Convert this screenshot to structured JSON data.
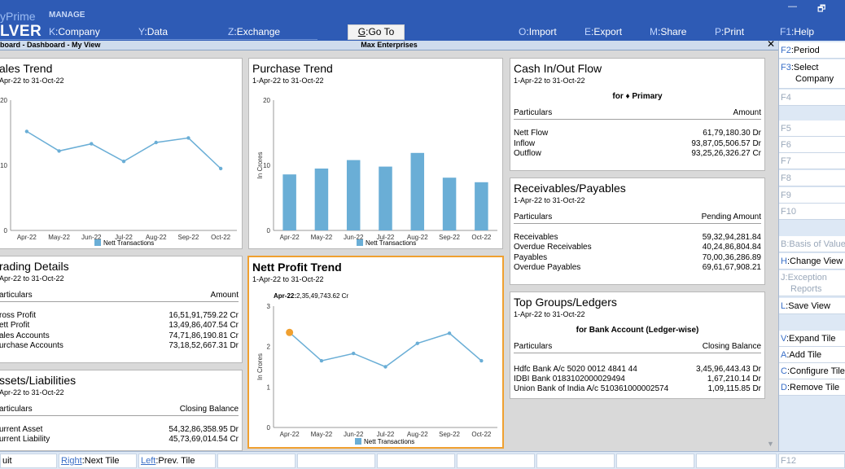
{
  "header": {
    "brand_top": "yPrime",
    "brand_main": "LVER",
    "manage_label": "MANAGE",
    "menu": [
      {
        "key": "K",
        "label": "Company"
      },
      {
        "key": "Y",
        "label": "Data"
      },
      {
        "key": "Z",
        "label": "Exchange"
      },
      {
        "key": "G",
        "label": "Go To"
      },
      {
        "key": "O",
        "label": "Import"
      },
      {
        "key": "E",
        "label": "Export"
      },
      {
        "key": "M",
        "label": "Share"
      },
      {
        "key": "P",
        "label": "Print"
      },
      {
        "key": "F1",
        "label": "Help"
      }
    ],
    "minimize": "—",
    "restore": "🗗"
  },
  "infobar": {
    "breadcrumb": "board - Dashboard - My View",
    "company": "Max Enterprises",
    "close": "✕"
  },
  "colors": {
    "accent": "#2e5bb5",
    "bar": "#6aaed6",
    "line": "#6aaed6",
    "highlight": "#f0a030"
  },
  "tiles": {
    "sales_trend": {
      "title": "ales Trend",
      "period": "Apr-22 to 31-Oct-22",
      "legend": "Nett Transactions"
    },
    "purchase_trend": {
      "title": "Purchase Trend",
      "period": "1-Apr-22 to 31-Oct-22",
      "legend": "Nett Transactions",
      "ylabel": "In Crores"
    },
    "cash_flow": {
      "title": "Cash In/Out Flow",
      "period": "1-Apr-22 to 31-Oct-22",
      "for_label": "for ♦ Primary",
      "col_left": "Particulars",
      "col_right": "Amount",
      "rows": [
        {
          "label": "Nett Flow",
          "value": "61,79,180.30 Dr"
        },
        {
          "label": "Inflow",
          "value": "93,87,05,506.57 Dr"
        },
        {
          "label": "Outflow",
          "value": "93,25,26,326.27 Cr"
        }
      ]
    },
    "receivables": {
      "title": "Receivables/Payables",
      "period": "1-Apr-22 to 31-Oct-22",
      "col_left": "Particulars",
      "col_right": "Pending Amount",
      "rows": [
        {
          "label": "Receivables",
          "value": "59,32,94,281.84"
        },
        {
          "label": "Overdue Receivables",
          "value": "40,24,86,804.84"
        },
        {
          "label": "Payables",
          "value": "70,00,36,286.89"
        },
        {
          "label": "Overdue Payables",
          "value": "69,61,67,908.21"
        }
      ]
    },
    "trading": {
      "title": "rading Details",
      "period": "Apr-22 to 31-Oct-22",
      "col_left": "articulars",
      "col_right": "Amount",
      "rows": [
        {
          "label": "ross Profit",
          "value": "16,51,91,759.22 Cr"
        },
        {
          "label": "ett Profit",
          "value": "13,49,86,407.54 Cr"
        },
        {
          "label": "ales Accounts",
          "value": "74,71,86,190.81 Cr"
        },
        {
          "label": "urchase Accounts",
          "value": "73,18,52,667.31 Dr"
        }
      ]
    },
    "nett_profit": {
      "title": "Nett Profit Trend",
      "period": "1-Apr-22 to 31-Oct-22",
      "tooltip_label": "Apr-22:",
      "tooltip_value": "2,35,49,743.62 Cr",
      "legend": "Nett Transactions",
      "ylabel": "In Crores"
    },
    "top_groups": {
      "title": "Top Groups/Ledgers",
      "period": "1-Apr-22 to 31-Oct-22",
      "for_label": "for Bank Account (Ledger-wise)",
      "col_left": "Particulars",
      "col_right": "Closing Balance",
      "rows": [
        {
          "label": "Hdfc Bank A/c 5020 0012 4841 44",
          "value": "3,45,96,443.43 Dr"
        },
        {
          "label": "IDBI Bank 0183102000029494",
          "value": "1,67,210.14 Dr"
        },
        {
          "label": "Union Bank of India A/c 510361000002574",
          "value": "1,09,115.85 Dr"
        }
      ]
    },
    "assets": {
      "title": "ssets/Liabilities",
      "period": "Apr-22 to 31-Oct-22",
      "col_left": "articulars",
      "col_right": "Closing Balance",
      "rows": [
        {
          "label": "urrent Asset",
          "value": "54,32,86,358.95 Dr"
        },
        {
          "label": "urrent Liability",
          "value": "45,73,69,014.54 Cr"
        }
      ]
    }
  },
  "chart_data": [
    {
      "type": "line",
      "title": "ales Trend",
      "categories": [
        "Apr-22",
        "May-22",
        "Jun-22",
        "Jul-22",
        "Aug-22",
        "Sep-22",
        "Oct-22"
      ],
      "series": [
        {
          "name": "Nett Transactions",
          "values": [
            15.2,
            12.2,
            13.3,
            10.6,
            13.5,
            14.2,
            9.5
          ]
        }
      ],
      "yticks": [
        "0",
        "10",
        "20"
      ],
      "ylim": [
        0,
        20
      ]
    },
    {
      "type": "bar",
      "title": "Purchase Trend",
      "ylabel": "In Crores",
      "categories": [
        "Apr-22",
        "May-22",
        "Jun-22",
        "Jul-22",
        "Aug-22",
        "Sep-22",
        "Oct-22"
      ],
      "series": [
        {
          "name": "Nett Transactions",
          "values": [
            8.6,
            9.5,
            10.8,
            9.8,
            11.9,
            8.1,
            7.4
          ]
        }
      ],
      "yticks": [
        "0",
        "10",
        "20"
      ],
      "ylim": [
        0,
        20
      ]
    },
    {
      "type": "line",
      "title": "Nett Profit Trend",
      "ylabel": "In Crores",
      "categories": [
        "Apr-22",
        "May-22",
        "Jun-22",
        "Jul-22",
        "Aug-22",
        "Sep-22",
        "Oct-22"
      ],
      "series": [
        {
          "name": "Nett Transactions",
          "values": [
            2.35,
            1.65,
            1.83,
            1.5,
            2.08,
            2.33,
            1.65
          ]
        }
      ],
      "yticks": [
        "0",
        "1",
        "2",
        "3"
      ],
      "ylim": [
        0,
        3
      ]
    }
  ],
  "sidebar": [
    {
      "key": "F2",
      "label": "Period",
      "state": "active"
    },
    {
      "key": "F3",
      "label": "Select",
      "label2": "Company",
      "state": "active"
    },
    {
      "key": "F4",
      "label": "",
      "state": "dim"
    },
    {
      "key": "F5",
      "label": "",
      "state": "dim"
    },
    {
      "key": "F6",
      "label": "",
      "state": "dim"
    },
    {
      "key": "F7",
      "label": "",
      "state": "dim"
    },
    {
      "key": "F8",
      "label": "",
      "state": "dim"
    },
    {
      "key": "F9",
      "label": "",
      "state": "dim"
    },
    {
      "key": "F10",
      "label": "",
      "state": "dim"
    },
    {
      "key": "B",
      "label": "Basis of Values",
      "state": "dim"
    },
    {
      "key": "H",
      "label": "Change View",
      "state": "active"
    },
    {
      "key": "J",
      "label": "Exception",
      "label2": "Reports",
      "state": "dim"
    },
    {
      "key": "L",
      "label": "Save View",
      "state": "active"
    },
    {
      "key": "V",
      "label": "Expand Tile",
      "state": "active"
    },
    {
      "key": "A",
      "label": "Add Tile",
      "state": "active"
    },
    {
      "key": "C",
      "label": "Configure Tile",
      "state": "active"
    },
    {
      "key": "D",
      "label": "Remove Tile",
      "state": "active"
    },
    {
      "key": "F12",
      "label": "",
      "state": "dim"
    }
  ],
  "bottom": [
    {
      "key": "",
      "label": "uit"
    },
    {
      "key": "Right",
      "label": "Next Tile"
    },
    {
      "key": "Left",
      "label": "Prev. Tile"
    }
  ]
}
